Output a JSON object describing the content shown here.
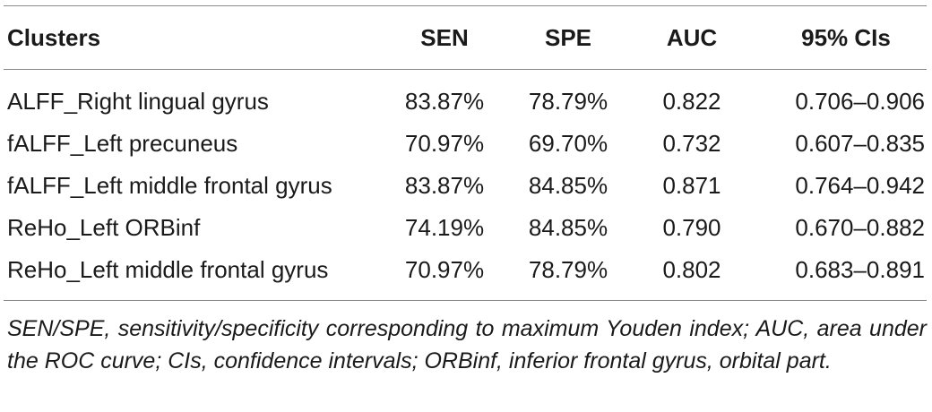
{
  "table": {
    "headers": [
      "Clusters",
      "SEN",
      "SPE",
      "AUC",
      "95% CIs"
    ],
    "rows": [
      [
        "ALFF_Right lingual gyrus",
        "83.87%",
        "78.79%",
        "0.822",
        "0.706–0.906"
      ],
      [
        "fALFF_Left precuneus",
        "70.97%",
        "69.70%",
        "0.732",
        "0.607–0.835"
      ],
      [
        "fALFF_Left middle frontal gyrus",
        "83.87%",
        "84.85%",
        "0.871",
        "0.764–0.942"
      ],
      [
        "ReHo_Left ORBinf",
        "74.19%",
        "84.85%",
        "0.790",
        "0.670–0.882"
      ],
      [
        "ReHo_Left middle frontal gyrus",
        "70.97%",
        "78.79%",
        "0.802",
        "0.683–0.891"
      ]
    ]
  },
  "footnote": "SEN/SPE, sensitivity/specificity corresponding to maximum Youden index; AUC, area under the ROC curve; CIs, confidence intervals; ORBinf, inferior frontal gyrus, orbital part."
}
